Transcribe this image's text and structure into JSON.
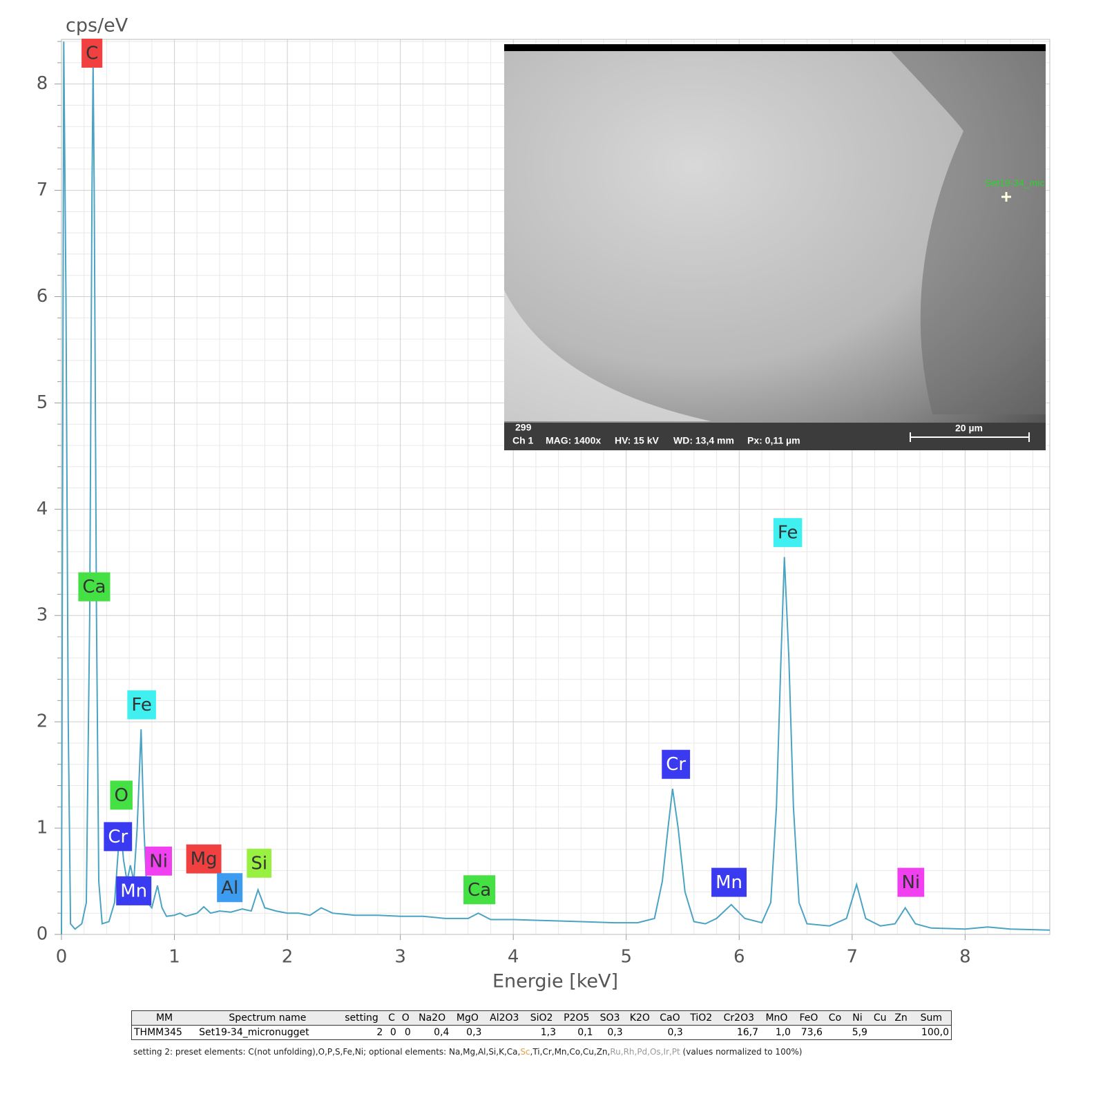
{
  "chart_data": {
    "type": "line",
    "y_label": "cps/eV",
    "x_label": "Energie [keV]",
    "xlim": [
      0,
      8.75
    ],
    "ylim": [
      0,
      8.42
    ],
    "xticks": [
      0,
      1,
      2,
      3,
      4,
      5,
      6,
      7,
      8
    ],
    "yticks": [
      0,
      1,
      2,
      3,
      4,
      5,
      6,
      7,
      8
    ],
    "grid": true,
    "color": "#4ba3c3",
    "x": [
      0,
      0.02,
      0.04,
      0.06,
      0.08,
      0.12,
      0.18,
      0.22,
      0.25,
      0.27,
      0.28,
      0.29,
      0.31,
      0.33,
      0.36,
      0.42,
      0.47,
      0.52,
      0.55,
      0.58,
      0.61,
      0.64,
      0.67,
      0.705,
      0.73,
      0.76,
      0.8,
      0.85,
      0.89,
      0.93,
      1.0,
      1.05,
      1.1,
      1.2,
      1.26,
      1.32,
      1.4,
      1.5,
      1.6,
      1.68,
      1.74,
      1.8,
      1.9,
      2.0,
      2.1,
      2.2,
      2.3,
      2.4,
      2.6,
      2.8,
      3.0,
      3.2,
      3.4,
      3.6,
      3.69,
      3.8,
      4.0,
      4.3,
      4.6,
      4.9,
      5.1,
      5.25,
      5.32,
      5.37,
      5.41,
      5.46,
      5.52,
      5.6,
      5.7,
      5.8,
      5.93,
      6.05,
      6.2,
      6.28,
      6.33,
      6.37,
      6.4,
      6.44,
      6.48,
      6.53,
      6.6,
      6.8,
      6.95,
      7.04,
      7.12,
      7.25,
      7.38,
      7.47,
      7.56,
      7.7,
      8.0,
      8.2,
      8.4,
      8.75
    ],
    "values": [
      0,
      8.4,
      6,
      2,
      0.1,
      0.05,
      0.1,
      0.3,
      3,
      7,
      8.2,
      7,
      3,
      0.5,
      0.1,
      0.12,
      0.3,
      1.05,
      0.7,
      0.5,
      0.65,
      0.5,
      1.0,
      1.93,
      1.0,
      0.3,
      0.25,
      0.46,
      0.25,
      0.17,
      0.18,
      0.2,
      0.17,
      0.2,
      0.26,
      0.2,
      0.22,
      0.21,
      0.24,
      0.22,
      0.42,
      0.25,
      0.22,
      0.2,
      0.2,
      0.18,
      0.25,
      0.2,
      0.18,
      0.18,
      0.17,
      0.17,
      0.15,
      0.15,
      0.2,
      0.14,
      0.14,
      0.13,
      0.12,
      0.11,
      0.11,
      0.15,
      0.5,
      1.0,
      1.37,
      1.0,
      0.4,
      0.12,
      0.1,
      0.15,
      0.28,
      0.15,
      0.11,
      0.3,
      1.2,
      2.6,
      3.55,
      2.6,
      1.2,
      0.3,
      0.1,
      0.08,
      0.15,
      0.47,
      0.15,
      0.08,
      0.1,
      0.25,
      0.1,
      0.06,
      0.05,
      0.07,
      0.05,
      0.04
    ],
    "annotations": [
      {
        "text": "C",
        "x": 0.27,
        "y": 8.29,
        "color": "#f04040"
      },
      {
        "text": "Ca",
        "x": 0.29,
        "y": 3.27,
        "color": "#44e044"
      },
      {
        "text": "Fe",
        "x": 0.71,
        "y": 2.16,
        "color": "#40f0f0"
      },
      {
        "text": "O",
        "x": 0.53,
        "y": 1.31,
        "color": "#44e044"
      },
      {
        "text": "Cr",
        "x": 0.5,
        "y": 0.92,
        "color": "#3a3af0"
      },
      {
        "text": "Ni",
        "x": 0.86,
        "y": 0.69,
        "color": "#f040f0"
      },
      {
        "text": "Mg",
        "x": 1.26,
        "y": 0.71,
        "color": "#f04040"
      },
      {
        "text": "Mn",
        "x": 0.64,
        "y": 0.41,
        "color": "#3a3af0"
      },
      {
        "text": "Al",
        "x": 1.49,
        "y": 0.44,
        "color": "#3b9cf0"
      },
      {
        "text": "Si",
        "x": 1.75,
        "y": 0.67,
        "color": "#98f040"
      },
      {
        "text": "Ca",
        "x": 3.7,
        "y": 0.42,
        "color": "#44e044"
      },
      {
        "text": "Cr",
        "x": 5.44,
        "y": 1.6,
        "color": "#3a3af0"
      },
      {
        "text": "Mn",
        "x": 5.91,
        "y": 0.49,
        "color": "#3a3af0"
      },
      {
        "text": "Fe",
        "x": 6.43,
        "y": 3.78,
        "color": "#40f0f0"
      },
      {
        "text": "Ni",
        "x": 7.52,
        "y": 0.49,
        "color": "#f040f0"
      }
    ]
  },
  "inset": {
    "marker_label": "Set19-34_mic",
    "image_number": "299",
    "channel": "Ch 1",
    "mag": "MAG: 1400x",
    "hv": "HV: 15 kV",
    "wd": "WD: 13,4 mm",
    "px": "Px: 0,11 µm",
    "scale": "20 µm"
  },
  "table": {
    "header": [
      "MM",
      "Spectrum name",
      "setting",
      "C",
      "O",
      "Na2O",
      "MgO",
      "Al2O3",
      "SiO2",
      "P2O5",
      "SO3",
      "K2O",
      "CaO",
      "TiO2",
      "Cr2O3",
      "MnO",
      "FeO",
      "Co",
      "Ni",
      "Cu",
      "Zn",
      "Sum"
    ],
    "rows": [
      [
        "THMM345",
        "Set19-34_micronugget",
        "2",
        "0",
        "0",
        "0,4",
        "0,3",
        null,
        "1,3",
        "0,1",
        "0,3",
        null,
        "0,3",
        null,
        "16,7",
        "1,0",
        "73,6",
        null,
        "5,9",
        null,
        null,
        "100,0"
      ]
    ],
    "footnote": [
      "setting 2: preset elements: C(not unfolding),O,P,S,Fe,Ni; optional elements: Na,Mg,Al,Si,K,Ca,",
      "Sc",
      ",Ti,Cr,Mn,Co,Cu,Zn,",
      "Ru,Rh,Pd,Os,Ir,Pt",
      " (values normalized to 100%)"
    ]
  }
}
